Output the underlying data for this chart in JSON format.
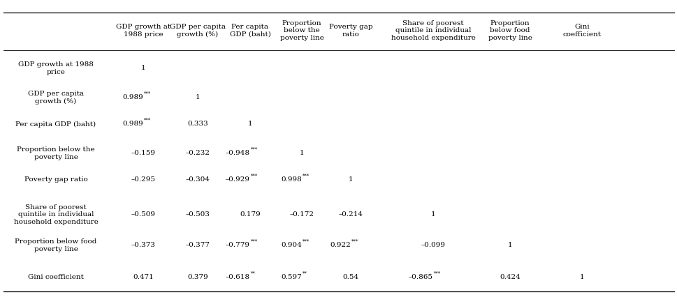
{
  "col_headers": [
    "GDP growth at\n1988 price",
    "GDP per capita\ngrowth (%)",
    "Per capita\nGDP (baht)",
    "Proportion\nbelow the\npoverty line",
    "Poverty gap\nratio",
    "Share of poorest\nquintile in individual\nhousehold expenditure",
    "Proportion\nbelow food\npoverty line",
    "Gini\ncoefficient"
  ],
  "row_headers": [
    "GDP growth at 1988\nprice",
    "GDP per capita\ngrowth (%)",
    "Per capita GDP (baht)",
    "Proportion below the\npoverty line",
    "Poverty gap ratio",
    "Share of poorest\nquintile in individual\nhousehold expenditure",
    "Proportion below food\npoverty line",
    "Gini coefficient"
  ],
  "cells": [
    [
      "1",
      "",
      "",
      "",
      "",
      "",
      "",
      ""
    ],
    [
      "0.989",
      "1",
      "",
      "",
      "",
      "",
      "",
      ""
    ],
    [
      "0.989",
      "0.333",
      "1",
      "",
      "",
      "",
      "",
      ""
    ],
    [
      "–0.159",
      "–0.232",
      "–0.948",
      "1",
      "",
      "",
      "",
      ""
    ],
    [
      "–0.295",
      "–0.304",
      "–0.929",
      "0.998",
      "1",
      "",
      "",
      ""
    ],
    [
      "–0.509",
      "–0.503",
      "0.179",
      "–0.172",
      "–0.214",
      "1",
      "",
      ""
    ],
    [
      "–0.373",
      "–0.377",
      "–0.779",
      "0.904",
      "0.922",
      "–0.099",
      "1",
      ""
    ],
    [
      "0.471",
      "0.379",
      "–0.618",
      "0.597",
      "0.54",
      "–0.865",
      "0.424",
      "1"
    ]
  ],
  "superscripts": [
    [
      "",
      "",
      "",
      "",
      "",
      "",
      "",
      ""
    ],
    [
      "***",
      "",
      "",
      "",
      "",
      "",
      "",
      ""
    ],
    [
      "***",
      "",
      "",
      "",
      "",
      "",
      "",
      ""
    ],
    [
      "",
      "",
      "***",
      "",
      "",
      "",
      "",
      ""
    ],
    [
      "",
      "",
      "***",
      "***",
      "",
      "",
      "",
      ""
    ],
    [
      "",
      "",
      "",
      "",
      "",
      "",
      "",
      ""
    ],
    [
      "",
      "",
      "***",
      "***",
      "***",
      "",
      "",
      ""
    ],
    [
      "",
      "",
      "**",
      "**",
      "",
      "***",
      "",
      ""
    ]
  ],
  "background_color": "#ffffff",
  "text_color": "#000000",
  "font_size": 7.5,
  "header_font_size": 7.5,
  "line_color": "#000000"
}
